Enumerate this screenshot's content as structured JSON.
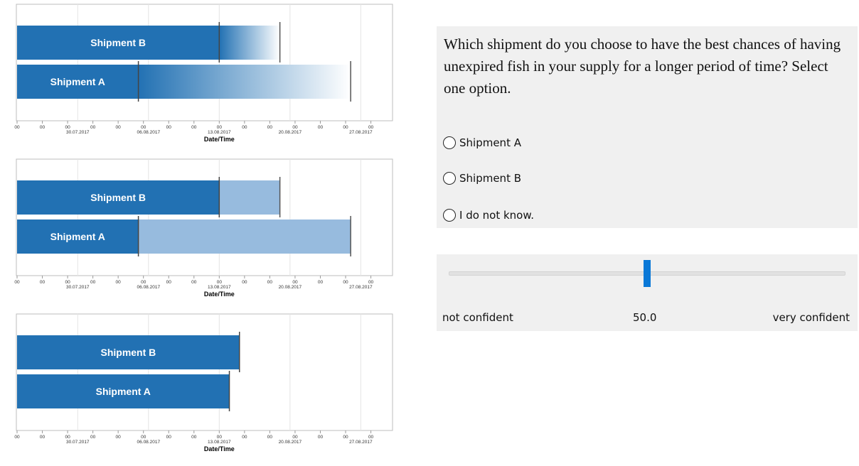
{
  "chart_data": [
    {
      "type": "bar",
      "orientation": "horizontal",
      "style": "gradient-fade",
      "categories": [
        "Shipment B",
        "Shipment A"
      ],
      "series": [
        {
          "values": [
            {
              "label": "Shipment B",
              "start": "2017-07-24",
              "solid_end": "2017-08-13",
              "fade_end": "2017-08-19"
            },
            {
              "label": "Shipment A",
              "start": "2017-07-24",
              "solid_end": "2017-08-05",
              "fade_end": "2017-08-26"
            }
          ]
        }
      ],
      "xlabel": "Date/Time",
      "xlim": [
        "2017-07-24",
        "2017-08-30"
      ],
      "x_ticks": [
        "30.07.2017",
        "06.08.2017",
        "13.08.2017",
        "20.08.2017",
        "27.08.2017"
      ],
      "minor_tick_label": "00",
      "grid": true
    },
    {
      "type": "bar",
      "orientation": "horizontal",
      "style": "two-tone",
      "categories": [
        "Shipment B",
        "Shipment A"
      ],
      "series": [
        {
          "values": [
            {
              "label": "Shipment B",
              "start": "2017-07-24",
              "solid_end": "2017-08-13",
              "fade_end": "2017-08-19"
            },
            {
              "label": "Shipment A",
              "start": "2017-07-24",
              "solid_end": "2017-08-05",
              "fade_end": "2017-08-26"
            }
          ]
        }
      ],
      "xlabel": "Date/Time",
      "xlim": [
        "2017-07-24",
        "2017-08-30"
      ],
      "x_ticks": [
        "30.07.2017",
        "06.08.2017",
        "13.08.2017",
        "20.08.2017",
        "27.08.2017"
      ],
      "minor_tick_label": "00",
      "grid": true
    },
    {
      "type": "bar",
      "orientation": "horizontal",
      "style": "solid",
      "categories": [
        "Shipment B",
        "Shipment A"
      ],
      "series": [
        {
          "values": [
            {
              "label": "Shipment B",
              "start": "2017-07-24",
              "solid_end": "2017-08-15"
            },
            {
              "label": "Shipment A",
              "start": "2017-07-24",
              "solid_end": "2017-08-14"
            }
          ]
        }
      ],
      "xlabel": "Date/Time",
      "xlim": [
        "2017-07-24",
        "2017-08-30"
      ],
      "x_ticks": [
        "30.07.2017",
        "06.08.2017",
        "13.08.2017",
        "20.08.2017",
        "27.08.2017"
      ],
      "minor_tick_label": "00",
      "grid": true
    }
  ],
  "colors": {
    "bar": "#2271b3",
    "bar_light": "#97bbde",
    "bar_fade_end": "#ffffff",
    "slider_handle": "#0a78d7",
    "panel_bg": "#f0f0f0"
  },
  "question": {
    "text": "Which shipment do you choose to have the best chances of having unexpired fish in your supply for a longer period of time? Select one option.",
    "options": [
      "Shipment A",
      "Shipment B",
      "I do not know."
    ]
  },
  "confidence": {
    "min_label": "not confident",
    "value_label": "50.0",
    "max_label": "very confident",
    "value_fraction": 0.5
  }
}
